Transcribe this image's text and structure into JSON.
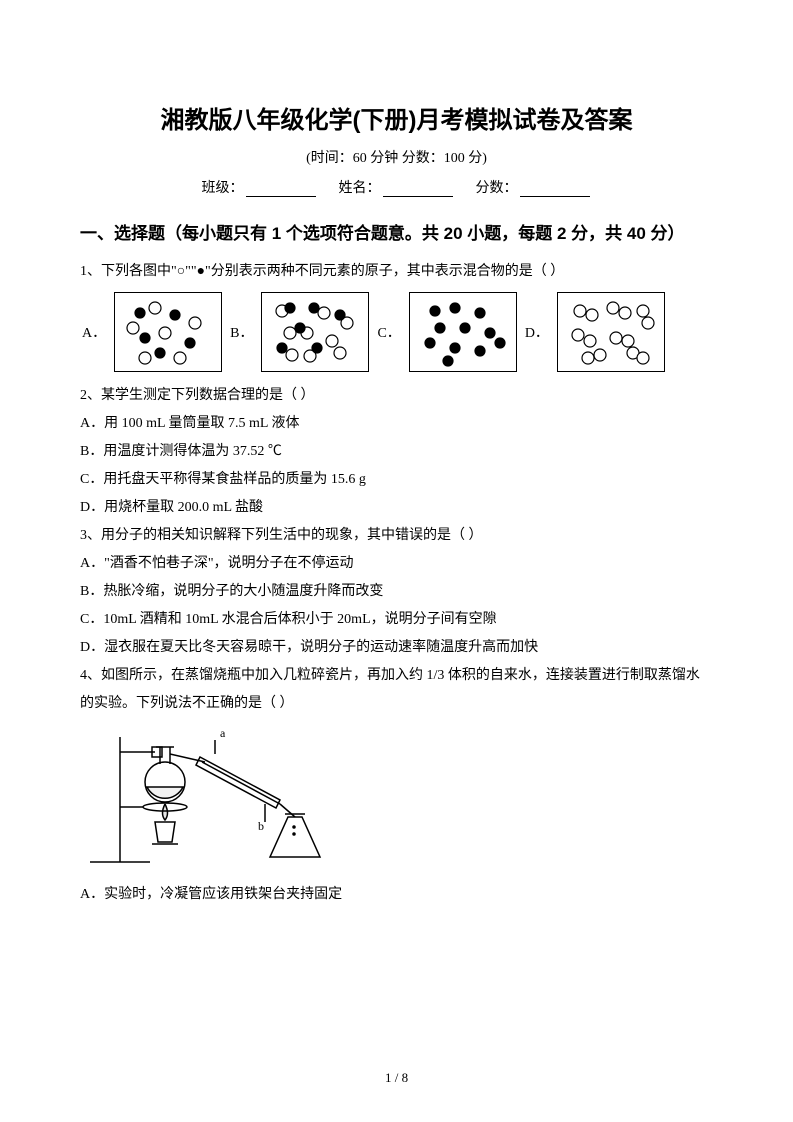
{
  "header": {
    "title": "湘教版八年级化学(下册)月考模拟试卷及答案",
    "subtitle": "(时间：60 分钟    分数：100 分)",
    "class_label": "班级：",
    "name_label": "姓名：",
    "score_label": "分数："
  },
  "section1": {
    "header": "一、选择题（每小题只有 1 个选项符合题意。共 20 小题，每题 2 分，共 40 分）"
  },
  "q1": {
    "stem": "1、下列各图中\"○\"\"●\"分别表示两种不同元素的原子，其中表示混合物的是（     ）",
    "labels": {
      "A": "A．",
      "B": "B．",
      "C": "C．",
      "D": "D．"
    },
    "diagrams": {
      "A": {
        "black": [
          [
            25,
            20
          ],
          [
            60,
            22
          ],
          [
            75,
            50
          ],
          [
            45,
            60
          ],
          [
            30,
            45
          ]
        ],
        "white": [
          [
            40,
            15
          ],
          [
            18,
            35
          ],
          [
            50,
            40
          ],
          [
            80,
            30
          ],
          [
            65,
            65
          ],
          [
            30,
            65
          ]
        ]
      },
      "B": {
        "black": [
          [
            28,
            15
          ],
          [
            52,
            15
          ],
          [
            78,
            22
          ],
          [
            38,
            35
          ],
          [
            20,
            55
          ],
          [
            55,
            55
          ]
        ],
        "white": [
          [
            20,
            18
          ],
          [
            62,
            20
          ],
          [
            85,
            30
          ],
          [
            28,
            40
          ],
          [
            45,
            40
          ],
          [
            70,
            48
          ],
          [
            30,
            62
          ],
          [
            48,
            63
          ],
          [
            78,
            60
          ]
        ]
      },
      "C": {
        "black": [
          [
            25,
            18
          ],
          [
            45,
            15
          ],
          [
            70,
            20
          ],
          [
            30,
            35
          ],
          [
            55,
            35
          ],
          [
            80,
            40
          ],
          [
            20,
            50
          ],
          [
            45,
            55
          ],
          [
            70,
            58
          ],
          [
            90,
            50
          ],
          [
            38,
            68
          ]
        ]
      },
      "D": {
        "white_pairs": [
          [
            [
              22,
              18
            ],
            [
              34,
              22
            ]
          ],
          [
            [
              55,
              15
            ],
            [
              67,
              20
            ]
          ],
          [
            [
              85,
              18
            ],
            [
              90,
              30
            ]
          ],
          [
            [
              20,
              42
            ],
            [
              32,
              48
            ]
          ],
          [
            [
              58,
              45
            ],
            [
              70,
              48
            ]
          ],
          [
            [
              30,
              65
            ],
            [
              42,
              62
            ]
          ],
          [
            [
              75,
              60
            ],
            [
              85,
              65
            ]
          ]
        ]
      }
    }
  },
  "q2": {
    "stem": "2、某学生测定下列数据合理的是（     ）",
    "A": "A．用 100 mL 量筒量取 7.5 mL 液体",
    "B": "B．用温度计测得体温为 37.52 ℃",
    "C": "C．用托盘天平称得某食盐样品的质量为 15.6 g",
    "D": "D．用烧杯量取 200.0 mL 盐酸"
  },
  "q3": {
    "stem": "3、用分子的相关知识解释下列生活中的现象，其中错误的是（     ）",
    "A": "A．\"酒香不怕巷子深\"，说明分子在不停运动",
    "B": "B．热胀冷缩，说明分子的大小随温度升降而改变",
    "C": "C．10mL 酒精和 10mL 水混合后体积小于 20mL，说明分子间有空隙",
    "D": "D．湿衣服在夏天比冬天容易晾干，说明分子的运动速率随温度升高而加快"
  },
  "q4": {
    "stem": "4、如图所示，在蒸馏烧瓶中加入几粒碎瓷片，再加入约 1/3 体积的自来水，连接装置进行制取蒸馏水的实验。下列说法不正确的是（     ）",
    "A": "A．实验时，冷凝管应该用铁架台夹持固定",
    "labels": {
      "a": "a",
      "b": "b"
    }
  },
  "page": {
    "current": "1",
    "total": "8"
  },
  "style": {
    "dot_black": "#000000",
    "dot_white_stroke": "#000000",
    "dot_white_fill": "#ffffff",
    "dot_r": 5,
    "stroke": "#000000"
  }
}
